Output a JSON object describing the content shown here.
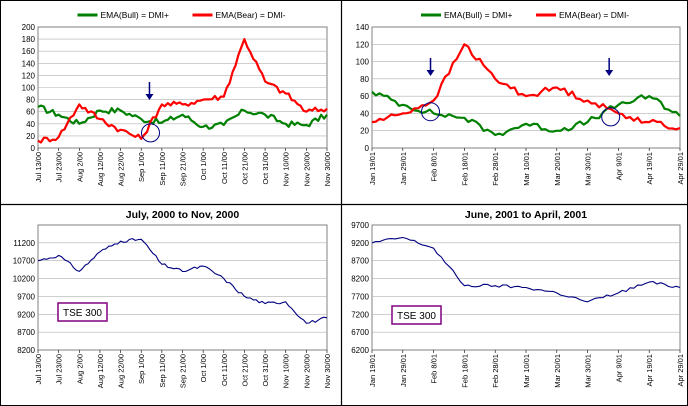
{
  "chart_data": [
    {
      "type": "line",
      "x": [
        "Jul 13/00",
        "Jul 23/00",
        "Aug 2/00",
        "Aug 12/00",
        "Aug 22/00",
        "Sep 1/00",
        "Sep 11/00",
        "Sep 21/00",
        "Oct 1/00",
        "Oct 11/00",
        "Oct 21/00",
        "Oct 31/00",
        "Nov 10/00",
        "Nov 20/00",
        "Nov 30/00"
      ],
      "ylim": [
        0,
        200
      ],
      "yticks": [
        0,
        20,
        40,
        60,
        80,
        100,
        120,
        140,
        160,
        180,
        200
      ],
      "series": [
        {
          "name": "EMA(Bull) = DMI+",
          "color": "#008000",
          "values": [
            68,
            55,
            40,
            62,
            62,
            48,
            42,
            55,
            35,
            38,
            62,
            55,
            40,
            38,
            55
          ]
        },
        {
          "name": "EMA(Bear) = DMI-",
          "color": "#ff0000",
          "values": [
            12,
            18,
            72,
            48,
            30,
            15,
            72,
            72,
            80,
            85,
            180,
            110,
            90,
            60,
            65
          ]
        }
      ],
      "grid": true,
      "legend_position": "top"
    },
    {
      "type": "line",
      "x": [
        "Jan 19/01",
        "Jan 29/01",
        "Feb 8/01",
        "Feb 18/01",
        "Feb 28/01",
        "Mar 10/01",
        "Mar 20/01",
        "Mar 30/01",
        "Apr 9/01",
        "Apr 19/01",
        "Apr 29/01"
      ],
      "ylim": [
        0,
        140
      ],
      "yticks": [
        0,
        20,
        40,
        60,
        80,
        100,
        120,
        140
      ],
      "series": [
        {
          "name": "EMA(Bull) = DMI+",
          "color": "#008000",
          "values": [
            65,
            50,
            40,
            35,
            15,
            28,
            20,
            30,
            50,
            60,
            37
          ]
        },
        {
          "name": "EMA(Bear) = DMI-",
          "color": "#ff0000",
          "values": [
            30,
            40,
            55,
            120,
            80,
            60,
            70,
            55,
            40,
            30,
            23
          ]
        }
      ],
      "grid": true,
      "legend_position": "top"
    },
    {
      "type": "line",
      "title": "July, 2000 to Nov, 2000",
      "x": [
        "Jul 13/00",
        "Jul 23/00",
        "Aug 2/00",
        "Aug 12/00",
        "Aug 22/00",
        "Sep 1/00",
        "Sep 11/00",
        "Sep 21/00",
        "Oct 1/00",
        "Oct 11/00",
        "Oct 21/00",
        "Oct 31/00",
        "Nov 10/00",
        "Nov 20/00",
        "Nov 30/00"
      ],
      "ylim": [
        8200,
        11700
      ],
      "yticks": [
        8200,
        8700,
        9200,
        9700,
        10200,
        10700,
        11200
      ],
      "series": [
        {
          "name": "TSE 300",
          "color": "#000080",
          "values": [
            10700,
            10850,
            10400,
            10950,
            11250,
            11300,
            10600,
            10400,
            10550,
            10200,
            9700,
            9500,
            9550,
            8950,
            9100
          ]
        }
      ],
      "annotations": [
        "TSE 300"
      ],
      "grid": true
    },
    {
      "type": "line",
      "title": "June, 2001 to April, 2001",
      "x": [
        "Jan 19/01",
        "Jan 29/01",
        "Feb 8/01",
        "Feb 18/01",
        "Feb 28/01",
        "Mar 10/01",
        "Mar 20/01",
        "Mar 30/01",
        "Apr 9/01",
        "Apr 19/01",
        "Apr 29/01"
      ],
      "ylim": [
        6200,
        9700
      ],
      "yticks": [
        6200,
        6700,
        7200,
        7700,
        8200,
        8700,
        9200,
        9700
      ],
      "series": [
        {
          "name": "TSE 300",
          "color": "#000080",
          "values": [
            9200,
            9350,
            9050,
            8000,
            8000,
            7950,
            7800,
            7550,
            7800,
            8100,
            7950
          ]
        }
      ],
      "annotations": [
        "TSE 300"
      ],
      "grid": true
    }
  ]
}
